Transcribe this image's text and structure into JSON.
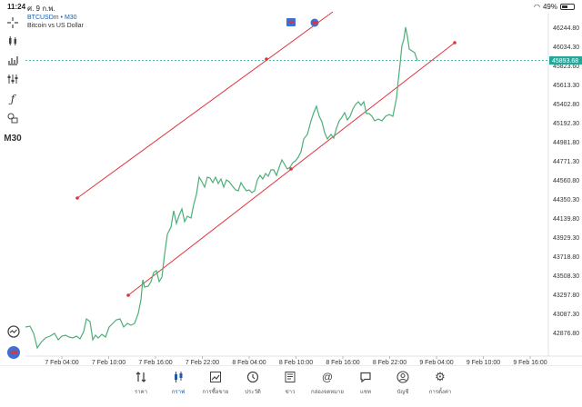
{
  "status": {
    "time": "11:24",
    "date": "ศ. 9 ก.พ.",
    "battery": "49%",
    "battery_level": 0.49
  },
  "header": {
    "symbol": "BTCUSDm • M30",
    "description": "Bitcoin vs US Dollar"
  },
  "toolbar": {
    "timeframe": "M30"
  },
  "chart": {
    "current_price": "45893.68",
    "colors": {
      "line": "#4caf78",
      "trendline": "#e0343a",
      "price_line": "#26a69a",
      "accent": "#1e5aa8"
    },
    "y_ticks": [
      "46244.80",
      "46034.30",
      "45823.60",
      "45613.30",
      "45402.80",
      "45192.30",
      "44981.80",
      "44771.30",
      "44560.80",
      "44350.30",
      "44139.80",
      "43929.30",
      "43718.80",
      "43508.30",
      "43297.80",
      "43087.30",
      "42876.80"
    ],
    "x_ticks": [
      "7 Feb 04:00",
      "7 Feb 10:00",
      "7 Feb 16:00",
      "7 Feb 22:00",
      "8 Feb 04:00",
      "8 Feb 10:00",
      "8 Feb 16:00",
      "8 Feb 22:00",
      "9 Feb 04:00",
      "9 Feb 10:00",
      "9 Feb 16:00"
    ]
  },
  "tabs": [
    {
      "label": "ราคา",
      "icon": "quotes-icon"
    },
    {
      "label": "กราฟ",
      "icon": "candles-icon",
      "active": true
    },
    {
      "label": "การซื้อขาย",
      "icon": "trade-icon"
    },
    {
      "label": "ประวัติ",
      "icon": "history-icon"
    },
    {
      "label": "ข่าว",
      "icon": "news-icon"
    },
    {
      "label": "กล่องจดหมาย",
      "icon": "mail-icon"
    },
    {
      "label": "แชท",
      "icon": "chat-icon"
    },
    {
      "label": "บัญชี",
      "icon": "account-icon"
    },
    {
      "label": "การตั้งค่า",
      "icon": "settings-icon"
    }
  ]
}
